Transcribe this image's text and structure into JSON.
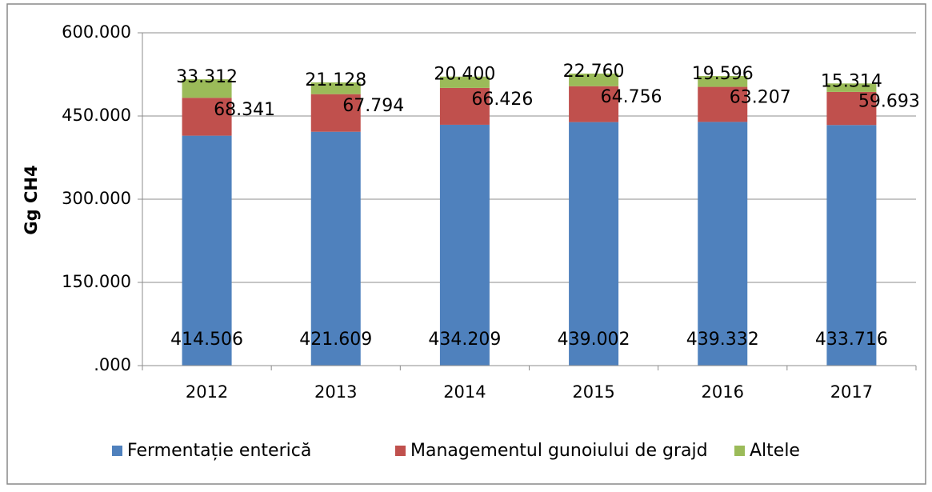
{
  "chart_data": {
    "type": "stacked_bar",
    "y_label": "Gg CH4",
    "categories": [
      "2012",
      "2013",
      "2014",
      "2015",
      "2016",
      "2017"
    ],
    "series": [
      {
        "name": "Fermentație enterică",
        "color": "#4f81bd",
        "values": [
          414.506,
          421.609,
          434.209,
          439.002,
          439.332,
          433.716
        ],
        "value_labels": [
          "414.506",
          "421.609",
          "434.209",
          "439.002",
          "439.332",
          "433.716"
        ]
      },
      {
        "name": "Managementul gunoiului de grajd",
        "color": "#c0504d",
        "values": [
          68.341,
          67.794,
          66.426,
          64.756,
          63.207,
          59.693
        ],
        "value_labels": [
          "68.341",
          "67.794",
          "66.426",
          "64.756",
          "63.207",
          "59.693"
        ]
      },
      {
        "name": "Altele",
        "color": "#9bbb59",
        "values": [
          33.312,
          21.128,
          20.4,
          22.76,
          19.596,
          15.314
        ],
        "value_labels": [
          "33.312",
          "21.128",
          "20.400",
          "22.760",
          "19.596",
          "15.314"
        ]
      }
    ],
    "ylim": [
      0,
      600
    ],
    "yticks": [
      {
        "value": 0,
        "label": ".000"
      },
      {
        "value": 150,
        "label": "150.000"
      },
      {
        "value": 300,
        "label": "300.000"
      },
      {
        "value": 450,
        "label": "450.000"
      },
      {
        "value": 600,
        "label": "600.000"
      }
    ],
    "grid": true,
    "legend": "bottom"
  }
}
